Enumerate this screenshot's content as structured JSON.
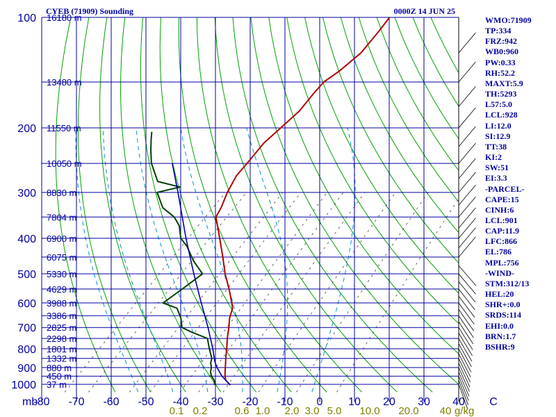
{
  "header": {
    "station_title": "CYEB (71909) Sounding",
    "time_label": "0000Z 14 JUN 25"
  },
  "stats": [
    "WMO:71909",
    "TP:334",
    "FRZ:942",
    "WB0:960",
    "PW:0.33",
    "RH:52.2",
    "MAXT:5.9",
    "TH:5293",
    "L57:5.0",
    "LCL:928",
    "LI:12.0",
    "SI:12.9",
    "TT:38",
    "KI:2",
    "SW:51",
    "EI:3.3",
    "-PARCEL-",
    "CAPE:15",
    "CINH:6",
    "LCL:901",
    "CAP:11.9",
    "LFC:866",
    "EL:786",
    "MPL:756",
    "-WIND-",
    "STM:312/13",
    "HEL:20",
    "SHR+:0.0",
    "SRDS:114",
    "EHI:0.0",
    "BRN:1.7",
    "BSHR:9"
  ],
  "colors": {
    "isobar": "#0000a0",
    "isotherm": "#0000a0",
    "dry_adiabat": "#00a000",
    "moist_adiabat": "#0090d0",
    "mixing_ratio": "#404040",
    "temperature": "#b00000",
    "dewpoint": "#004000",
    "parcel": "#0000a0",
    "axis_text": "#0000a0",
    "mixing_text": "#808000"
  },
  "chart_data": {
    "type": "line",
    "title": "CYEB (71909) Sounding",
    "skew_t": true,
    "x_tick_labels": [
      "-80",
      "-70",
      "-60",
      "-50",
      "-40",
      "-30",
      "-20",
      "-10",
      "0",
      "10",
      "20",
      "30",
      "40",
      "C"
    ],
    "x_units_label": "mb",
    "y_log_scale": true,
    "y_tick_labels": [
      "100",
      "200",
      "300",
      "400",
      "500",
      "600",
      "700",
      "800",
      "900",
      "1000"
    ],
    "height_labels": [
      {
        "p": 100,
        "label": "16180 m"
      },
      {
        "p": 150,
        "label": "13480 m"
      },
      {
        "p": 200,
        "label": "11550 m"
      },
      {
        "p": 250,
        "label": "10050 m"
      },
      {
        "p": 300,
        "label": "8830 m"
      },
      {
        "p": 350,
        "label": "7804 m"
      },
      {
        "p": 400,
        "label": "6900 m"
      },
      {
        "p": 450,
        "label": "6075 m"
      },
      {
        "p": 500,
        "label": "5330 m"
      },
      {
        "p": 550,
        "label": "4629 m"
      },
      {
        "p": 600,
        "label": "3988 m"
      },
      {
        "p": 650,
        "label": "3386 m"
      },
      {
        "p": 700,
        "label": "2825 m"
      },
      {
        "p": 750,
        "label": "2298 m"
      },
      {
        "p": 800,
        "label": "1801 m"
      },
      {
        "p": 850,
        "label": "1332 m"
      },
      {
        "p": 900,
        "label": "880 m"
      },
      {
        "p": 950,
        "label": "450 m"
      },
      {
        "p": 1000,
        "label": "37 m"
      }
    ],
    "mixing_ratio_labels": [
      {
        "w": 0.1,
        "label": "0.1"
      },
      {
        "w": 0.2,
        "label": "0.2"
      },
      {
        "w": 0.6,
        "label": "0.6"
      },
      {
        "w": 1.0,
        "label": "1.0"
      },
      {
        "w": 2.0,
        "label": "2.0"
      },
      {
        "w": 3.0,
        "label": "3.0"
      },
      {
        "w": 5.0,
        "label": "5.0"
      },
      {
        "w": 10.0,
        "label": "10.0"
      },
      {
        "w": 20.0,
        "label": "20.0"
      },
      {
        "w": 40.0,
        "label": "40"
      }
    ],
    "mixing_ratio_unit": "g/kg",
    "series": [
      {
        "key": "temperature",
        "points": [
          {
            "p": 1005,
            "t": 4.5
          },
          {
            "p": 975,
            "t": 1.8
          },
          {
            "p": 950,
            "t": 0.4
          },
          {
            "p": 925,
            "t": -0.8
          },
          {
            "p": 900,
            "t": -2.0
          },
          {
            "p": 875,
            "t": -3.2
          },
          {
            "p": 850,
            "t": -4.5
          },
          {
            "p": 800,
            "t": -7.0
          },
          {
            "p": 750,
            "t": -9.8
          },
          {
            "p": 700,
            "t": -12.5
          },
          {
            "p": 660,
            "t": -15.0
          },
          {
            "p": 620,
            "t": -17.0
          },
          {
            "p": 600,
            "t": -18.7
          },
          {
            "p": 550,
            "t": -23.5
          },
          {
            "p": 500,
            "t": -29.0
          },
          {
            "p": 450,
            "t": -34.5
          },
          {
            "p": 400,
            "t": -40.8
          },
          {
            "p": 370,
            "t": -45.0
          },
          {
            "p": 350,
            "t": -48.0
          },
          {
            "p": 330,
            "t": -49.2
          },
          {
            "p": 300,
            "t": -51.8
          },
          {
            "p": 270,
            "t": -54.0
          },
          {
            "p": 250,
            "t": -54.5
          },
          {
            "p": 220,
            "t": -55.5
          },
          {
            "p": 200,
            "t": -55.0
          },
          {
            "p": 180,
            "t": -54.5
          },
          {
            "p": 160,
            "t": -55.5
          },
          {
            "p": 150,
            "t": -55.8
          },
          {
            "p": 140,
            "t": -54.5
          },
          {
            "p": 125,
            "t": -53.5
          },
          {
            "p": 110,
            "t": -54.5
          },
          {
            "p": 100,
            "t": -55.5
          }
        ]
      },
      {
        "key": "dewpoint",
        "points": [
          {
            "p": 1005,
            "t": 0.0
          },
          {
            "p": 975,
            "t": -1.5
          },
          {
            "p": 950,
            "t": -3.5
          },
          {
            "p": 925,
            "t": -5.0
          },
          {
            "p": 900,
            "t": -6.0
          },
          {
            "p": 875,
            "t": -7.5
          },
          {
            "p": 850,
            "t": -8.5
          },
          {
            "p": 800,
            "t": -12.0
          },
          {
            "p": 750,
            "t": -15.5
          },
          {
            "p": 720,
            "t": -22.0
          },
          {
            "p": 700,
            "t": -26.0
          },
          {
            "p": 660,
            "t": -29.0
          },
          {
            "p": 620,
            "t": -33.0
          },
          {
            "p": 600,
            "t": -38.5
          },
          {
            "p": 550,
            "t": -37.0
          },
          {
            "p": 500,
            "t": -35.5
          },
          {
            "p": 460,
            "t": -42.0
          },
          {
            "p": 420,
            "t": -48.0
          },
          {
            "p": 400,
            "t": -52.0
          },
          {
            "p": 370,
            "t": -56.0
          },
          {
            "p": 350,
            "t": -60.0
          },
          {
            "p": 330,
            "t": -66.0
          },
          {
            "p": 300,
            "t": -72.0
          },
          {
            "p": 290,
            "t": -67.0
          },
          {
            "p": 280,
            "t": -75.0
          },
          {
            "p": 250,
            "t": -82.0
          },
          {
            "p": 230,
            "t": -86.0
          },
          {
            "p": 215,
            "t": -89.0
          },
          {
            "p": 205,
            "t": -91.0
          }
        ]
      },
      {
        "key": "parcel",
        "points": [
          {
            "p": 1005,
            "t": 4.5
          },
          {
            "p": 950,
            "t": -0.5
          },
          {
            "p": 901,
            "t": -4.3
          },
          {
            "p": 866,
            "t": -6.8
          },
          {
            "p": 800,
            "t": -11.0
          },
          {
            "p": 700,
            "t": -18.5
          },
          {
            "p": 600,
            "t": -27.5
          },
          {
            "p": 500,
            "t": -38.0
          },
          {
            "p": 400,
            "t": -50.5
          },
          {
            "p": 300,
            "t": -66.0
          },
          {
            "p": 250,
            "t": -76.0
          }
        ]
      }
    ]
  }
}
